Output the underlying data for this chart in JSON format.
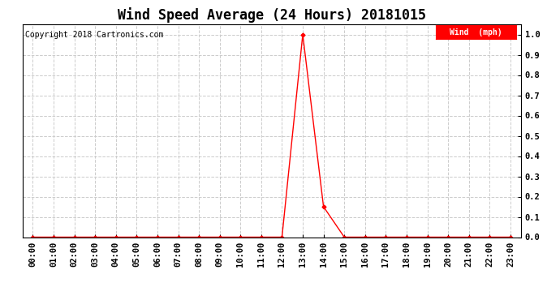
{
  "title": "Wind Speed Average (24 Hours) 20181015",
  "copyright_text": "Copyright 2018 Cartronics.com",
  "legend_label": "Wind  (mph)",
  "legend_bg_color": "#ff0000",
  "legend_text_color": "#ffffff",
  "x_labels": [
    "00:00",
    "01:00",
    "02:00",
    "03:00",
    "04:00",
    "05:00",
    "06:00",
    "07:00",
    "08:00",
    "09:00",
    "10:00",
    "11:00",
    "12:00",
    "13:00",
    "14:00",
    "15:00",
    "16:00",
    "17:00",
    "18:00",
    "19:00",
    "20:00",
    "21:00",
    "22:00",
    "23:00"
  ],
  "y_ticks": [
    0.0,
    0.1,
    0.2,
    0.3,
    0.4,
    0.5,
    0.6,
    0.7,
    0.8,
    0.9,
    1.0
  ],
  "ylim": [
    0.0,
    1.05
  ],
  "xlim": [
    -0.5,
    23.5
  ],
  "data_x": [
    0,
    1,
    2,
    3,
    4,
    5,
    6,
    7,
    8,
    9,
    10,
    11,
    12,
    13,
    14,
    15,
    16,
    17,
    18,
    19,
    20,
    21,
    22,
    23
  ],
  "data_y": [
    0.0,
    0.0,
    0.0,
    0.0,
    0.0,
    0.0,
    0.0,
    0.0,
    0.0,
    0.0,
    0.0,
    0.0,
    0.0,
    1.0,
    0.15,
    0.0,
    0.0,
    0.0,
    0.0,
    0.0,
    0.0,
    0.0,
    0.0,
    0.0
  ],
  "line_color": "#ff0000",
  "marker": "D",
  "marker_size": 2.5,
  "bg_color": "#ffffff",
  "grid_color": "#cccccc",
  "title_fontsize": 12,
  "copyright_fontsize": 7,
  "tick_fontsize": 7.5
}
